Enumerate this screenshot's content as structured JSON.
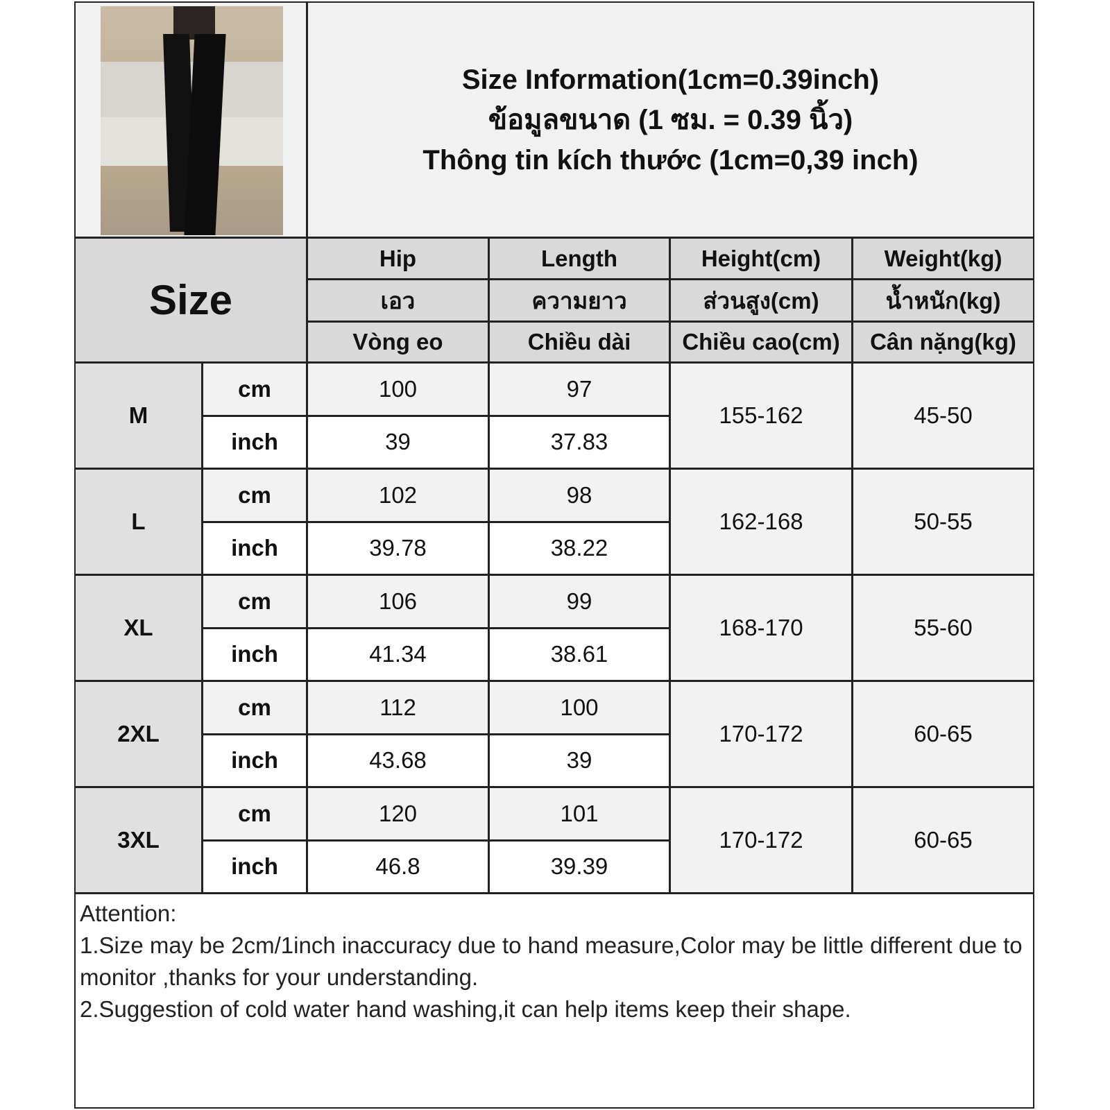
{
  "title": {
    "en": "Size Information(1cm=0.39inch)",
    "th": "ข้อมูลขนาด (1 ซม. = 0.39 นิ้ว)",
    "vi": "Thông tin kích thước (1cm=0,39 inch)"
  },
  "header": {
    "size_label": "Size",
    "columns": [
      {
        "en": "Hip",
        "th": "เอว",
        "vi": "Vòng eo"
      },
      {
        "en": "Length",
        "th": "ความยาว",
        "vi": "Chiều dài"
      },
      {
        "en": "Height(cm)",
        "th": "ส่วนสูง(cm)",
        "vi": "Chiều cao(cm)"
      },
      {
        "en": "Weight(kg)",
        "th": "น้ำหนัก(kg)",
        "vi": "Cân nặng(kg)"
      }
    ]
  },
  "units": {
    "cm": "cm",
    "inch": "inch"
  },
  "rows": [
    {
      "size": "M",
      "hip_cm": "100",
      "length_cm": "97",
      "hip_inch": "39",
      "length_inch": "37.83",
      "height": "155-162",
      "weight": "45-50"
    },
    {
      "size": "L",
      "hip_cm": "102",
      "length_cm": "98",
      "hip_inch": "39.78",
      "length_inch": "38.22",
      "height": "162-168",
      "weight": "50-55"
    },
    {
      "size": "XL",
      "hip_cm": "106",
      "length_cm": "99",
      "hip_inch": "41.34",
      "length_inch": "38.61",
      "height": "168-170",
      "weight": "55-60"
    },
    {
      "size": "2XL",
      "hip_cm": "112",
      "length_cm": "100",
      "hip_inch": "43.68",
      "length_inch": "39",
      "height": "170-172",
      "weight": "60-65"
    },
    {
      "size": "3XL",
      "hip_cm": "120",
      "length_cm": "101",
      "hip_inch": "46.8",
      "length_inch": "39.39",
      "height": "170-172",
      "weight": "60-65"
    }
  ],
  "notes": {
    "heading": "Attention:",
    "line1": "1.Size may be 2cm/1inch inaccuracy due to hand measure,Color may be little different due to monitor ,thanks for your understanding.",
    "line2": "2.Suggestion of cold water hand washing,it can help items keep their shape."
  }
}
